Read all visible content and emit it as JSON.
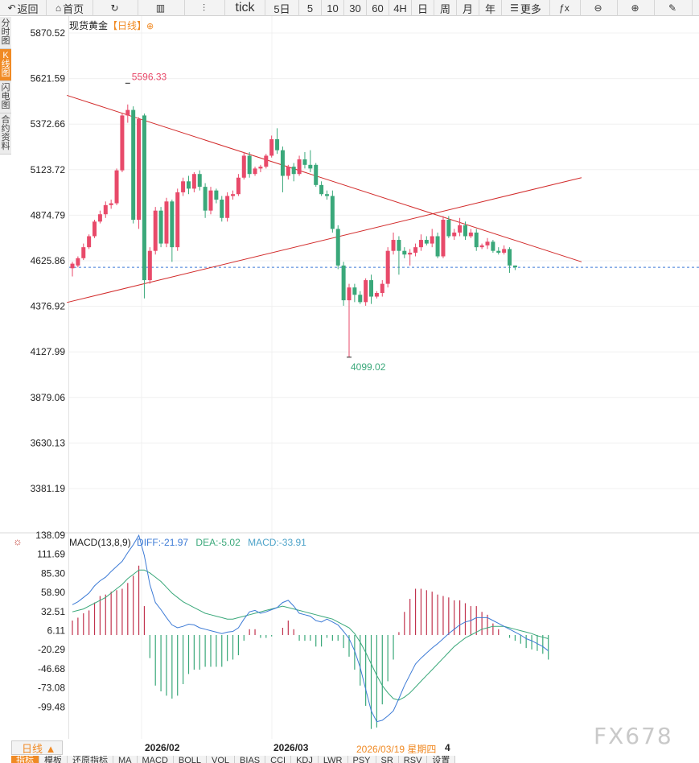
{
  "toolbar": {
    "items": [
      {
        "label": "返回",
        "icon": "back-arrow-icon",
        "w": 58
      },
      {
        "label": "首页",
        "icon": "home-icon",
        "w": 58
      },
      {
        "label": "",
        "icon": "refresh-icon",
        "w": 56
      },
      {
        "label": "",
        "icon": "bar-chart-icon",
        "w": 58
      },
      {
        "label": "",
        "icon": "candlestick-icon",
        "w": 50
      },
      {
        "label": "tick",
        "icon": "",
        "w": 50
      },
      {
        "label": "5日",
        "icon": "",
        "w": 42
      },
      {
        "label": "5",
        "icon": "",
        "w": 28
      },
      {
        "label": "10",
        "icon": "",
        "w": 28
      },
      {
        "label": "30",
        "icon": "",
        "w": 28
      },
      {
        "label": "60",
        "icon": "",
        "w": 28
      },
      {
        "label": "4H",
        "icon": "",
        "w": 28
      },
      {
        "label": "日",
        "icon": "",
        "w": 28
      },
      {
        "label": "周",
        "icon": "",
        "w": 28
      },
      {
        "label": "月",
        "icon": "",
        "w": 28
      },
      {
        "label": "年",
        "icon": "",
        "w": 28
      },
      {
        "label": "更多",
        "icon": "menu-icon",
        "w": 60
      },
      {
        "label": "",
        "icon": "formula-fx-icon",
        "w": 38
      },
      {
        "label": "",
        "icon": "zoom-out-icon",
        "w": 46
      },
      {
        "label": "",
        "icon": "zoom-in-icon",
        "w": 46
      },
      {
        "label": "",
        "icon": "draw-pen-icon",
        "w": 47
      }
    ]
  },
  "side_tabs": [
    {
      "label": "分时图",
      "active": false
    },
    {
      "label": "K线图",
      "active": true
    },
    {
      "label": "闪电图",
      "active": false
    },
    {
      "label": "合约资料",
      "active": false
    }
  ],
  "title": {
    "name": "现货黄金",
    "period": "【日线】",
    "plus": "⊕"
  },
  "chart_data": {
    "type": "candlestick",
    "instrument": "现货黄金",
    "period": "日线",
    "y_ticks": [
      "5870.52",
      "5621.59",
      "5372.66",
      "5123.72",
      "4874.79",
      "4625.86",
      "4376.92",
      "4127.99",
      "3879.06",
      "3630.13",
      "3381.19"
    ],
    "ylim": [
      3381.19,
      5870.52
    ],
    "annotations": [
      {
        "text": "5596.33",
        "value": 5596.33,
        "color": "#e84a6a"
      },
      {
        "text": "4099.02",
        "value": 4099.02,
        "color": "#3aa87a"
      }
    ],
    "current_price_line": 4590,
    "candles": [
      [
        4585,
        4610,
        4540,
        4620
      ],
      [
        4600,
        4640,
        4590,
        4650
      ],
      [
        4640,
        4700,
        4630,
        4720
      ],
      [
        4700,
        4760,
        4690,
        4770
      ],
      [
        4760,
        4840,
        4750,
        4850
      ],
      [
        4840,
        4880,
        4830,
        4900
      ],
      [
        4880,
        4930,
        4860,
        4950
      ],
      [
        4930,
        4940,
        4910,
        4960
      ],
      [
        4940,
        5120,
        4930,
        5130
      ],
      [
        5120,
        5420,
        5110,
        5430
      ],
      [
        5420,
        5450,
        5380,
        5480
      ],
      [
        5450,
        4850,
        4830,
        5470
      ],
      [
        4850,
        5400,
        4800,
        5410
      ],
      [
        5420,
        4520,
        4420,
        5430
      ],
      [
        4520,
        4680,
        4500,
        4700
      ],
      [
        4680,
        4900,
        4660,
        4920
      ],
      [
        4900,
        4720,
        4700,
        4920
      ],
      [
        4720,
        4950,
        4700,
        4970
      ],
      [
        4950,
        4700,
        4620,
        4960
      ],
      [
        4700,
        5000,
        4680,
        5020
      ],
      [
        5000,
        5060,
        4980,
        5080
      ],
      [
        5060,
        5020,
        4990,
        5090
      ],
      [
        5020,
        5100,
        5000,
        5110
      ],
      [
        5100,
        5030,
        5010,
        5120
      ],
      [
        5030,
        4900,
        4860,
        5050
      ],
      [
        4900,
        5010,
        4880,
        5030
      ],
      [
        5010,
        4960,
        4940,
        5020
      ],
      [
        4960,
        4860,
        4840,
        4980
      ],
      [
        4860,
        4980,
        4840,
        5000
      ],
      [
        4980,
        4990,
        4960,
        5010
      ],
      [
        4990,
        5080,
        4980,
        5100
      ],
      [
        5080,
        5200,
        5070,
        5220
      ],
      [
        5200,
        5100,
        5080,
        5220
      ],
      [
        5100,
        5130,
        5090,
        5140
      ],
      [
        5130,
        5140,
        5110,
        5150
      ],
      [
        5140,
        5200,
        5130,
        5210
      ],
      [
        5200,
        5290,
        5190,
        5310
      ],
      [
        5290,
        5230,
        5210,
        5350
      ],
      [
        5230,
        5090,
        5000,
        5250
      ],
      [
        5090,
        5140,
        5070,
        5150
      ],
      [
        5140,
        5100,
        5060,
        5160
      ],
      [
        5100,
        5180,
        5090,
        5200
      ],
      [
        5180,
        5150,
        5130,
        5220
      ],
      [
        5150,
        5130,
        5110,
        5230
      ],
      [
        5150,
        5040,
        5030,
        5160
      ],
      [
        5040,
        4990,
        4980,
        5060
      ],
      [
        4990,
        4980,
        4960,
        5010
      ],
      [
        4980,
        4800,
        4780,
        5010
      ],
      [
        4800,
        4600,
        4580,
        4820
      ],
      [
        4600,
        4410,
        4380,
        4620
      ],
      [
        4410,
        4480,
        4100,
        4500
      ],
      [
        4480,
        4440,
        4400,
        4500
      ],
      [
        4440,
        4400,
        4390,
        4460
      ],
      [
        4400,
        4520,
        4380,
        4530
      ],
      [
        4520,
        4430,
        4390,
        4550
      ],
      [
        4430,
        4450,
        4420,
        4460
      ],
      [
        4450,
        4500,
        4430,
        4520
      ],
      [
        4500,
        4680,
        4480,
        4700
      ],
      [
        4680,
        4740,
        4660,
        4780
      ],
      [
        4740,
        4680,
        4550,
        4760
      ],
      [
        4680,
        4660,
        4640,
        4700
      ],
      [
        4660,
        4670,
        4600,
        4690
      ],
      [
        4670,
        4700,
        4650,
        4720
      ],
      [
        4700,
        4740,
        4680,
        4770
      ],
      [
        4740,
        4720,
        4710,
        4760
      ],
      [
        4720,
        4760,
        4700,
        4800
      ],
      [
        4760,
        4650,
        4640,
        4780
      ],
      [
        4650,
        4850,
        4640,
        4870
      ],
      [
        4850,
        4760,
        4750,
        4870
      ],
      [
        4760,
        4780,
        4740,
        4800
      ],
      [
        4780,
        4820,
        4760,
        4860
      ],
      [
        4820,
        4760,
        4740,
        4840
      ],
      [
        4760,
        4780,
        4750,
        4800
      ],
      [
        4780,
        4700,
        4680,
        4800
      ],
      [
        4700,
        4710,
        4690,
        4720
      ],
      [
        4710,
        4730,
        4690,
        4750
      ],
      [
        4730,
        4680,
        4670,
        4740
      ],
      [
        4680,
        4670,
        4660,
        4700
      ],
      [
        4670,
        4690,
        4660,
        4710
      ],
      [
        4690,
        4600,
        4560,
        4700
      ],
      [
        4600,
        4590,
        4575,
        4600
      ]
    ],
    "trendlines": [
      {
        "name": "",
        "color": "#d22b2b",
        "from": {
          "index": -1,
          "value": 5530
        },
        "to": {
          "index": 92,
          "value": 4620
        }
      },
      {
        "name": "",
        "color": "#d22b2b",
        "from": {
          "index": -1,
          "value": 4398
        },
        "to": {
          "index": 92,
          "value": 5080
        }
      }
    ],
    "x_labels": [
      "2026/02",
      "2026/03"
    ]
  },
  "macd": {
    "title": "MACD(13,8,9)",
    "diff_label": "DIFF:-21.97",
    "dea_label": "DEA:-5.02",
    "macd_label": "MACD:-33.91",
    "y_ticks": [
      "138.09",
      "111.69",
      "85.30",
      "58.90",
      "32.51",
      "6.11",
      "-20.29",
      "-46.68",
      "-73.08",
      "-99.48"
    ],
    "ylim": [
      -125,
      150
    ],
    "diff": [
      42,
      46,
      52,
      58,
      68,
      75,
      80,
      88,
      95,
      102,
      114,
      125,
      138,
      110,
      70,
      45,
      35,
      24,
      14,
      10,
      12,
      15,
      14,
      10,
      8,
      6,
      4,
      2,
      4,
      5,
      10,
      22,
      32,
      34,
      30,
      32,
      35,
      38,
      45,
      48,
      40,
      30,
      28,
      26,
      20,
      18,
      22,
      18,
      14,
      5,
      -5,
      -22,
      -45,
      -75,
      -105,
      -120,
      -118,
      -112,
      -105,
      -88,
      -70,
      -55,
      -40,
      -32,
      -25,
      -18,
      -12,
      -5,
      2,
      8,
      14,
      18,
      20,
      24,
      24,
      24,
      20,
      16,
      12,
      8,
      4,
      0,
      -5,
      -8,
      -12,
      -16,
      -22
    ],
    "dea": [
      32,
      34,
      36,
      40,
      44,
      48,
      52,
      58,
      64,
      70,
      78,
      84,
      90,
      90,
      86,
      80,
      74,
      66,
      58,
      52,
      46,
      42,
      38,
      34,
      30,
      28,
      26,
      24,
      22,
      22,
      24,
      26,
      28,
      30,
      32,
      34,
      36,
      38,
      40,
      38,
      36,
      34,
      32,
      30,
      28,
      26,
      24,
      22,
      18,
      14,
      10,
      2,
      -10,
      -24,
      -40,
      -56,
      -70,
      -80,
      -88,
      -90,
      -86,
      -80,
      -72,
      -64,
      -56,
      -48,
      -40,
      -32,
      -24,
      -16,
      -10,
      -4,
      0,
      4,
      8,
      10,
      12,
      12,
      12,
      10,
      8,
      6,
      4,
      2,
      -1,
      -3,
      -5
    ],
    "hist": [
      20,
      24,
      30,
      34,
      45,
      54,
      56,
      60,
      62,
      64,
      72,
      82,
      96,
      40,
      -32,
      -70,
      -78,
      -84,
      -88,
      -84,
      -68,
      -54,
      -48,
      -48,
      -44,
      -44,
      -44,
      -44,
      -36,
      -34,
      -28,
      -8,
      8,
      8,
      -4,
      -4,
      -2,
      0,
      10,
      20,
      8,
      -8,
      -8,
      -8,
      -16,
      -16,
      -4,
      -8,
      -8,
      -18,
      -30,
      -48,
      -70,
      -98,
      -130,
      -128,
      -96,
      -64,
      -34,
      4,
      32,
      50,
      64,
      64,
      62,
      60,
      56,
      54,
      52,
      48,
      48,
      44,
      40,
      40,
      32,
      28,
      16,
      8,
      0,
      -4,
      -8,
      -12,
      -18,
      -20,
      -22,
      -26,
      -34
    ]
  },
  "bottom": {
    "period_button": "日线 ▲",
    "date_labels": [
      "2026/02",
      "2026/03"
    ],
    "cursor_date": "2026/03/19 星期四",
    "cursor_extra": "4"
  },
  "indicator_tabs": [
    {
      "label": "指标",
      "on": true
    },
    {
      "label": "模板",
      "on": false
    },
    {
      "label": "还原指标",
      "on": false
    },
    {
      "label": "MA",
      "on": false
    },
    {
      "label": "MACD",
      "on": false
    },
    {
      "label": "BOLL",
      "on": false
    },
    {
      "label": "VOL",
      "on": false
    },
    {
      "label": "BIAS",
      "on": false
    },
    {
      "label": "CCI",
      "on": false
    },
    {
      "label": "KDJ",
      "on": false
    },
    {
      "label": "LWR",
      "on": false
    },
    {
      "label": "PSY",
      "on": false
    },
    {
      "label": "SR",
      "on": false
    },
    {
      "label": "RSV",
      "on": false
    },
    {
      "label": "设置",
      "on": false
    }
  ],
  "watermark": "FX678",
  "colors": {
    "up": "#e84a6a",
    "down": "#3aa87a",
    "diff": "#3d7bd6",
    "dea": "#3aa87a",
    "trend": "#d22b2b",
    "price_line": "#3d7bd6"
  }
}
